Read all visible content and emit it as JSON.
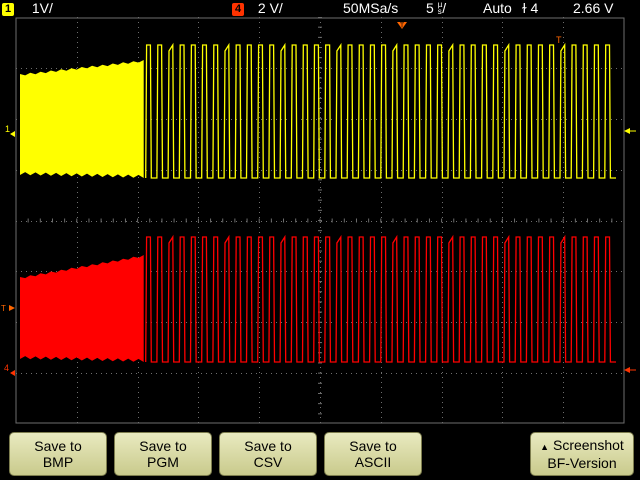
{
  "status_bar": {
    "ch1_badge": "1",
    "ch1_scale": "1V/",
    "ch4_badge": "4",
    "ch4_scale": "2 V/",
    "sample_rate": "50MSa/s",
    "timebase": "5",
    "timebase_unit_top": "µ",
    "timebase_unit_bottom": "s",
    "timebase_unit_slash": "/",
    "trigger_mode": "Auto",
    "trigger_source_symbol": "ɫ",
    "trigger_source": "4",
    "trigger_level": "2.66 V"
  },
  "markers": {
    "trigger_position": "T",
    "trigger_time_marker": "T",
    "ch1_ground": "1",
    "ch4_ground": "4",
    "trigger_level_marker": "T"
  },
  "softkeys": [
    {
      "line1": "Save to",
      "line2": "BMP"
    },
    {
      "line1": "Save to",
      "line2": "PGM"
    },
    {
      "line1": "Save to",
      "line2": "CSV"
    },
    {
      "line1": "Save to",
      "line2": "ASCII"
    },
    {
      "line1": "Screenshot",
      "line2": "BF-Version"
    }
  ],
  "colors": {
    "ch1": "#ffff00",
    "ch4": "#ff0000",
    "accent": "#ff6600",
    "grid": "#6e6e6e"
  },
  "waveform_view": {
    "channels_shown": [
      "1",
      "4"
    ],
    "burst_segment_fraction": 0.21,
    "burst_envelope": "rising",
    "periodic_segment_cycles": 42
  },
  "icons": {
    "softkey_arrow": "up-triangle-icon",
    "ch1_level_arrow": "left-arrow-icon",
    "trigger_arrow": "right-arrow-icon"
  }
}
